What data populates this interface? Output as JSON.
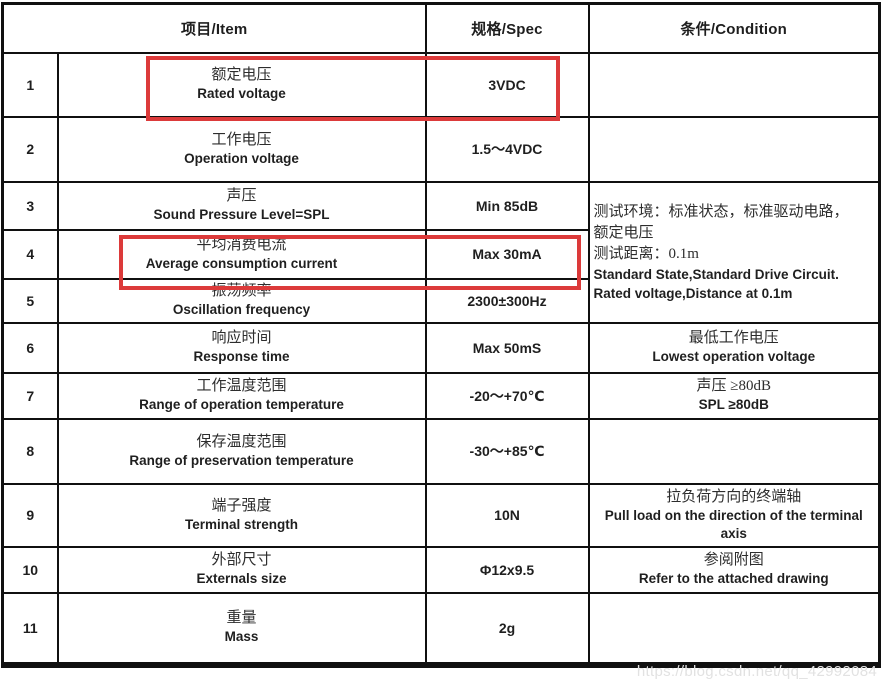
{
  "watermark": "https://blog.csdn.net/qq_42992084",
  "colors": {
    "highlight": "#dc3a3a",
    "border": "#101010"
  },
  "table": {
    "header": {
      "item": "项目/Item",
      "spec": "规格/Spec",
      "condition": "条件/Condition"
    },
    "merged_condition_rows_3_5": {
      "lines": [
        "测试环境：标准状态，标准驱动电路，",
        "额定电压",
        "测试距离：0.1m",
        "Standard State,Standard Drive Circuit.",
        "Rated voltage,Distance at 0.1m"
      ]
    },
    "rows": [
      {
        "num": "1",
        "item_zh": "额定电压",
        "item_en": "Rated voltage",
        "spec": "3VDC",
        "cond_zh": "",
        "cond_en": "",
        "highlighted": true
      },
      {
        "num": "2",
        "item_zh": "工作电压",
        "item_en": "Operation voltage",
        "spec": "1.5～4VDC",
        "cond_zh": "",
        "cond_en": "",
        "highlighted": false
      },
      {
        "num": "3",
        "item_zh": "声压",
        "item_en": "Sound Pressure Level=SPL",
        "spec": "Min 85dB",
        "highlighted": false
      },
      {
        "num": "4",
        "item_zh": "平均消费电流",
        "item_en": "Average consumption current",
        "spec": "Max 30mA",
        "highlighted": true
      },
      {
        "num": "5",
        "item_zh": "振荡频率",
        "item_en": "Oscillation frequency",
        "spec": "2300±300Hz",
        "highlighted": false
      },
      {
        "num": "6",
        "item_zh": "响应时间",
        "item_en": "Response time",
        "spec": "Max 50mS",
        "cond_zh": "最低工作电压",
        "cond_en": "Lowest operation voltage",
        "highlighted": false
      },
      {
        "num": "7",
        "item_zh": "工作温度范围",
        "item_en": "Range of operation temperature",
        "spec": "-20～+70℃",
        "cond_zh": "声压 ≥80dB",
        "cond_en": "SPL ≥80dB",
        "highlighted": false
      },
      {
        "num": "8",
        "item_zh": "保存温度范围",
        "item_en": "Range of preservation temperature",
        "spec": "-30～+85℃",
        "cond_zh": "",
        "cond_en": "",
        "highlighted": false
      },
      {
        "num": "9",
        "item_zh": "端子强度",
        "item_en": "Terminal strength",
        "spec": "10N",
        "cond_zh": "拉负荷方向的终端轴",
        "cond_en": "Pull load on the direction of the terminal axis",
        "highlighted": false
      },
      {
        "num": "10",
        "item_zh": "外部尺寸",
        "item_en": "Externals size",
        "spec": "Φ12x9.5",
        "cond_zh": "参阅附图",
        "cond_en": "Refer to the attached drawing",
        "highlighted": false
      },
      {
        "num": "11",
        "item_zh": "重量",
        "item_en": "Mass",
        "spec": "2g",
        "cond_zh": "",
        "cond_en": "",
        "highlighted": false
      }
    ]
  }
}
